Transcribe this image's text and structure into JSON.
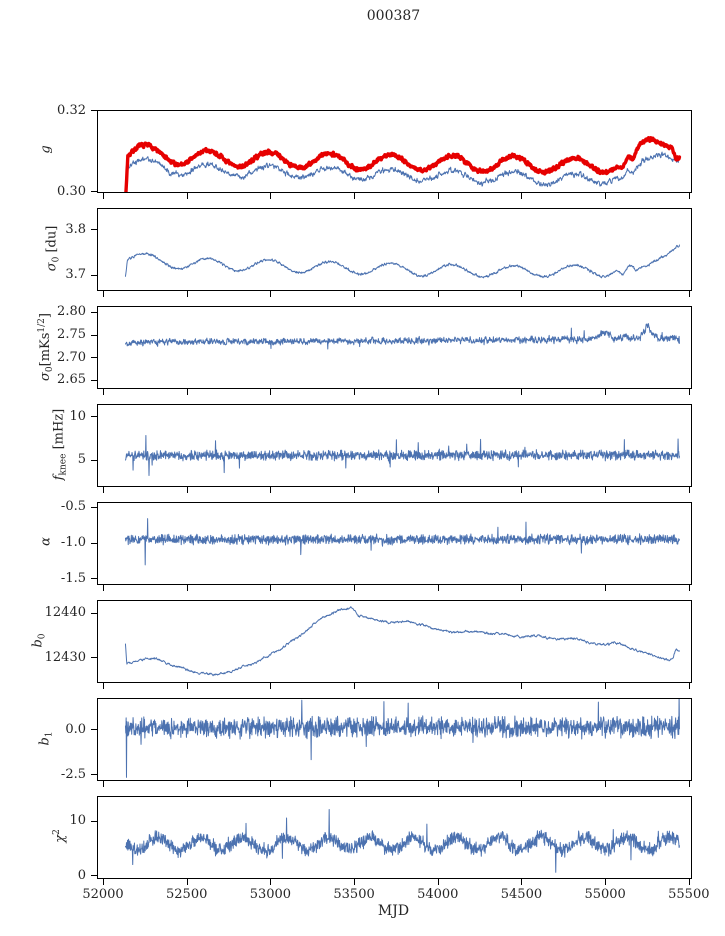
{
  "title": "000387",
  "xlabel": "MJD",
  "colors": {
    "line_blue": "#4c72b0",
    "line_red": "#e60000",
    "axis": "#000000",
    "text": "#262626",
    "background": "#ffffff"
  },
  "x_axis": {
    "lim": [
      51964,
      55507
    ],
    "data_start": 52128,
    "data_end": 55438,
    "ticks": [
      52000,
      52500,
      53000,
      53500,
      54000,
      54500,
      55000,
      55500
    ],
    "tick_labels": [
      "52000",
      "52500",
      "53000",
      "53500",
      "54000",
      "54500",
      "55000",
      "55500"
    ]
  },
  "chart_data": [
    {
      "type": "line",
      "name": "g",
      "ylabel_parts": [
        {
          "text": "g",
          "style": "italic"
        }
      ],
      "ylim": [
        0.3,
        0.32
      ],
      "yticks": [
        0.3,
        0.32
      ],
      "ytick_labels": [
        "0.30",
        "0.32"
      ],
      "series": [
        {
          "name": "g-fit",
          "color_key": "line_blue",
          "linewidth": 1.0,
          "samples": 1500,
          "seed": 21,
          "base_points": [
            [
              52128,
              0.2995
            ],
            [
              52142,
              0.3065
            ],
            [
              52200,
              0.307
            ],
            [
              52500,
              0.3055
            ],
            [
              53000,
              0.305
            ],
            [
              53500,
              0.3045
            ],
            [
              54000,
              0.304
            ],
            [
              54500,
              0.3035
            ],
            [
              54800,
              0.303
            ],
            [
              55000,
              0.3035
            ],
            [
              55060,
              0.304
            ],
            [
              55100,
              0.3025
            ],
            [
              55130,
              0.3045
            ],
            [
              55170,
              0.3035
            ],
            [
              55220,
              0.3065
            ],
            [
              55300,
              0.31
            ],
            [
              55360,
              0.3105
            ],
            [
              55420,
              0.3085
            ]
          ],
          "osc": {
            "period": 365,
            "amp": 0.0014,
            "peak_mjd": 52620
          },
          "noise": {
            "amp": 0.00055,
            "smooth": 0.6
          },
          "spike_prob": 0.0,
          "spike_amp": 0.0,
          "spikes": []
        },
        {
          "name": "g-raw",
          "color_key": "line_red",
          "linewidth": 3.4,
          "samples": 1400,
          "seed": 7,
          "base_points": [
            [
              52128,
              0.2985
            ],
            [
              52142,
              0.3096
            ],
            [
              52200,
              0.31
            ],
            [
              52500,
              0.3084
            ],
            [
              53000,
              0.308
            ],
            [
              53500,
              0.3075
            ],
            [
              54000,
              0.3072
            ],
            [
              54500,
              0.3069
            ],
            [
              54800,
              0.3065
            ],
            [
              55000,
              0.3068
            ],
            [
              55060,
              0.307
            ],
            [
              55100,
              0.3054
            ],
            [
              55130,
              0.3077
            ],
            [
              55160,
              0.306
            ],
            [
              55200,
              0.3102
            ],
            [
              55270,
              0.3133
            ],
            [
              55350,
              0.3136
            ],
            [
              55390,
              0.3126
            ],
            [
              55420,
              0.309
            ]
          ],
          "osc": {
            "period": 365,
            "amp": 0.0019,
            "peak_mjd": 52620
          },
          "noise": {
            "amp": 0.00038,
            "smooth": 0.35
          },
          "spike_prob": 0.0,
          "spike_amp": 0.0,
          "spikes": []
        }
      ]
    },
    {
      "type": "line",
      "name": "sigma0-du",
      "ylabel_parts": [
        {
          "text": "σ",
          "style": "italic"
        },
        {
          "text": "0",
          "style": "sub"
        },
        {
          "text": " [du]",
          "style": "normal"
        }
      ],
      "ylim": [
        3.669,
        3.847
      ],
      "yticks": [
        3.7,
        3.8
      ],
      "ytick_labels": [
        "3.7",
        "3.8"
      ],
      "series": [
        {
          "name": "sigma0-du",
          "color_key": "line_blue",
          "linewidth": 1.0,
          "samples": 1500,
          "seed": 31,
          "base_points": [
            [
              52128,
              3.705
            ],
            [
              52140,
              3.74
            ],
            [
              52200,
              3.738
            ],
            [
              52500,
              3.727
            ],
            [
              53000,
              3.722
            ],
            [
              53500,
              3.717
            ],
            [
              54000,
              3.712
            ],
            [
              54500,
              3.71
            ],
            [
              55000,
              3.712
            ],
            [
              55060,
              3.718
            ],
            [
              55100,
              3.7
            ],
            [
              55140,
              3.712
            ],
            [
              55180,
              3.7
            ],
            [
              55250,
              3.72
            ],
            [
              55320,
              3.75
            ],
            [
              55400,
              3.768
            ],
            [
              55430,
              3.77
            ]
          ],
          "osc": {
            "period": 365,
            "amp": 0.013,
            "peak_mjd": 52620
          },
          "noise": {
            "amp": 0.0022,
            "smooth": 0.5
          },
          "spike_prob": 0.0,
          "spike_amp": 0.0,
          "spikes": []
        }
      ]
    },
    {
      "type": "line",
      "name": "sigma0-mK",
      "ylabel_parts": [
        {
          "text": "σ",
          "style": "italic"
        },
        {
          "text": "0",
          "style": "sub"
        },
        {
          "text": "[mKs",
          "style": "normal"
        },
        {
          "text": "1/2",
          "style": "sup"
        },
        {
          "text": "]",
          "style": "normal"
        }
      ],
      "ylim": [
        2.634,
        2.813
      ],
      "yticks": [
        2.65,
        2.7,
        2.75,
        2.8
      ],
      "ytick_labels": [
        "2.65",
        "2.70",
        "2.75",
        "2.80"
      ],
      "series": [
        {
          "name": "sigma0-mK",
          "color_key": "line_blue",
          "linewidth": 1.0,
          "samples": 1600,
          "seed": 41,
          "base_points": [
            [
              52128,
              2.728
            ],
            [
              52160,
              2.735
            ],
            [
              52400,
              2.736
            ],
            [
              53000,
              2.737
            ],
            [
              54000,
              2.739
            ],
            [
              54900,
              2.741
            ],
            [
              55000,
              2.758
            ],
            [
              55040,
              2.743
            ],
            [
              55120,
              2.746
            ],
            [
              55200,
              2.744
            ],
            [
              55250,
              2.772
            ],
            [
              55290,
              2.747
            ],
            [
              55350,
              2.742
            ],
            [
              55400,
              2.745
            ],
            [
              55438,
              2.74
            ]
          ],
          "osc": null,
          "noise": {
            "amp": 0.0055,
            "smooth": 0.3
          },
          "spike_prob": 0.008,
          "spike_amp": 0.012,
          "spikes": []
        }
      ]
    },
    {
      "type": "line",
      "name": "f-knee",
      "ylabel_parts": [
        {
          "text": "f",
          "style": "italic"
        },
        {
          "text": "knee",
          "style": "sub"
        },
        {
          "text": " [mHz]",
          "style": "normal"
        }
      ],
      "ylim": [
        2.1,
        11.4
      ],
      "yticks": [
        5,
        10
      ],
      "ytick_labels": [
        "5",
        "10"
      ],
      "series": [
        {
          "name": "f-knee",
          "color_key": "line_blue",
          "linewidth": 1.0,
          "samples": 1600,
          "seed": 51,
          "base_points": [
            [
              52128,
              5.6
            ],
            [
              55438,
              5.65
            ]
          ],
          "osc": null,
          "noise": {
            "amp": 0.42,
            "smooth": 0.0
          },
          "spike_prob": 0.012,
          "spike_amp": 0.9,
          "spikes": [
            [
              52250,
              7.9
            ],
            [
              52268,
              3.3
            ],
            [
              55430,
              7.5
            ]
          ]
        }
      ]
    },
    {
      "type": "line",
      "name": "alpha",
      "ylabel_parts": [
        {
          "text": "α",
          "style": "italic"
        }
      ],
      "ylim": [
        -1.57,
        -0.43
      ],
      "yticks": [
        -1.5,
        -1.0,
        -0.5
      ],
      "ytick_labels": [
        "-1.5",
        "-1.0",
        "-0.5"
      ],
      "series": [
        {
          "name": "alpha",
          "color_key": "line_blue",
          "linewidth": 1.0,
          "samples": 1600,
          "seed": 61,
          "base_points": [
            [
              52128,
              -0.945
            ],
            [
              55438,
              -0.94
            ]
          ],
          "osc": null,
          "noise": {
            "amp": 0.052,
            "smooth": 0.0
          },
          "spike_prob": 0.01,
          "spike_amp": 0.12,
          "spikes": [
            [
              52245,
              -1.3
            ],
            [
              52260,
              -0.65
            ]
          ]
        }
      ]
    },
    {
      "type": "line",
      "name": "b0",
      "ylabel_parts": [
        {
          "text": "b",
          "style": "italic"
        },
        {
          "text": "0",
          "style": "sub"
        }
      ],
      "ylim": [
        12424.7,
        12442.8
      ],
      "yticks": [
        12430,
        12440
      ],
      "ytick_labels": [
        "12430",
        "12440"
      ],
      "series": [
        {
          "name": "b0",
          "color_key": "line_blue",
          "linewidth": 1.0,
          "samples": 1500,
          "seed": 71,
          "base_points": [
            [
              52128,
              12433.2
            ],
            [
              52136,
              12428.8
            ],
            [
              52200,
              12429.5
            ],
            [
              52300,
              12430.0
            ],
            [
              52400,
              12428.5
            ],
            [
              52550,
              12426.8
            ],
            [
              52650,
              12426.3
            ],
            [
              52750,
              12427.0
            ],
            [
              52900,
              12429.0
            ],
            [
              53050,
              12432.0
            ],
            [
              53200,
              12436.0
            ],
            [
              53300,
              12439.0
            ],
            [
              53400,
              12440.8
            ],
            [
              53480,
              12441.3
            ],
            [
              53520,
              12439.5
            ],
            [
              53600,
              12438.8
            ],
            [
              53700,
              12438.0
            ],
            [
              53800,
              12438.3
            ],
            [
              53900,
              12437.5
            ],
            [
              54000,
              12436.3
            ],
            [
              54100,
              12435.8
            ],
            [
              54200,
              12436.0
            ],
            [
              54350,
              12435.5
            ],
            [
              54500,
              12434.8
            ],
            [
              54600,
              12435.0
            ],
            [
              54700,
              12434.3
            ],
            [
              54800,
              12434.5
            ],
            [
              54900,
              12433.5
            ],
            [
              55000,
              12433.0
            ],
            [
              55050,
              12433.5
            ],
            [
              55100,
              12433.0
            ],
            [
              55200,
              12431.5
            ],
            [
              55250,
              12431.0
            ],
            [
              55300,
              12430.3
            ],
            [
              55350,
              12429.7
            ],
            [
              55400,
              12429.8
            ],
            [
              55415,
              12432.0
            ],
            [
              55438,
              12431.5
            ]
          ],
          "osc": null,
          "noise": {
            "amp": 0.22,
            "smooth": 0.7
          },
          "spike_prob": 0.0,
          "spike_amp": 0.0,
          "spikes": []
        }
      ]
    },
    {
      "type": "line",
      "name": "b1",
      "ylabel_parts": [
        {
          "text": "b",
          "style": "italic"
        },
        {
          "text": "1",
          "style": "sub"
        }
      ],
      "ylim": [
        -2.77,
        1.76
      ],
      "yticks": [
        -2.5,
        0.0
      ],
      "ytick_labels": [
        "-2.5",
        "0.0"
      ],
      "series": [
        {
          "name": "b1",
          "color_key": "line_blue",
          "linewidth": 1.0,
          "samples": 1600,
          "seed": 81,
          "base_points": [
            [
              52128,
              0.15
            ],
            [
              55438,
              0.18
            ]
          ],
          "osc": null,
          "noise": {
            "amp": 0.42,
            "smooth": 0.0
          },
          "spike_prob": 0.006,
          "spike_amp": 0.8,
          "spikes": [
            [
              52134,
              -2.62
            ],
            [
              55436,
              2.05
            ]
          ]
        }
      ]
    },
    {
      "type": "line",
      "name": "chi2",
      "ylabel_parts": [
        {
          "text": "χ",
          "style": "italic"
        },
        {
          "text": "2",
          "style": "sup"
        }
      ],
      "ylim": [
        -0.35,
        14.6
      ],
      "yticks": [
        0,
        10
      ],
      "ytick_labels": [
        "0",
        "10"
      ],
      "series": [
        {
          "name": "chi2",
          "color_key": "line_blue",
          "linewidth": 1.0,
          "samples": 1600,
          "seed": 91,
          "base_points": [
            [
              52128,
              5.9
            ],
            [
              55438,
              6.0
            ]
          ],
          "osc": {
            "period": 255,
            "amp": 1.15,
            "peak_mjd": 52320
          },
          "noise": {
            "amp": 0.95,
            "smooth": 0.0
          },
          "spike_prob": 0.005,
          "spike_amp": 2.2,
          "spikes": [
            [
              53345,
              12.3
            ],
            [
              54700,
              0.7
            ]
          ]
        }
      ]
    }
  ]
}
